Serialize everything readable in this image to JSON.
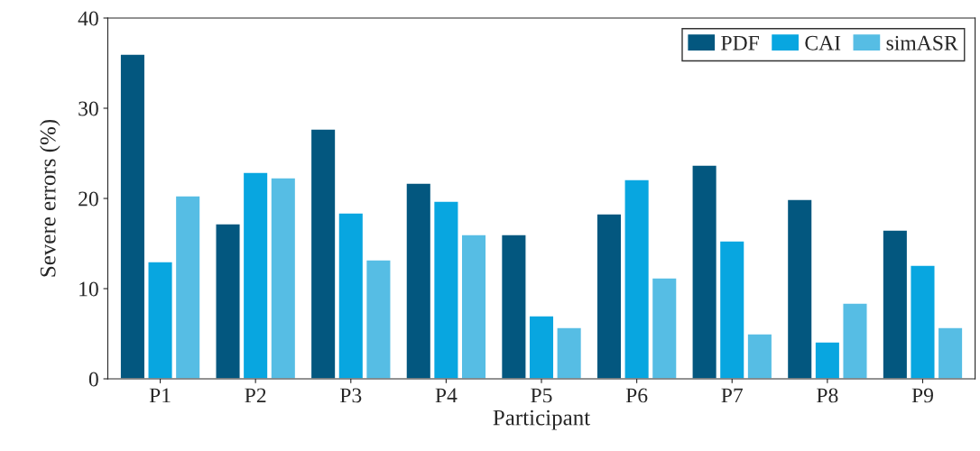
{
  "chart_data": {
    "type": "bar",
    "xlabel": "Participant",
    "ylabel": "Severe errors (%)",
    "categories": [
      "P1",
      "P2",
      "P3",
      "P4",
      "P5",
      "P6",
      "P7",
      "P8",
      "P9"
    ],
    "series": [
      {
        "name": "PDF",
        "color": "#03577f",
        "values": [
          36.0,
          17.2,
          27.7,
          21.7,
          16.0,
          18.3,
          23.7,
          19.9,
          16.5
        ]
      },
      {
        "name": "CAI",
        "color": "#08a6e0",
        "values": [
          13.0,
          22.9,
          18.4,
          19.7,
          7.0,
          22.1,
          15.3,
          4.1,
          12.6
        ]
      },
      {
        "name": "simASR",
        "color": "#56bde4",
        "values": [
          20.3,
          22.3,
          13.2,
          16.0,
          5.7,
          11.2,
          5.0,
          8.4,
          5.7
        ]
      }
    ],
    "ylim": [
      0,
      40
    ],
    "yticks": [
      0,
      10,
      20,
      30,
      40
    ],
    "grid": false,
    "legend": "top right"
  }
}
